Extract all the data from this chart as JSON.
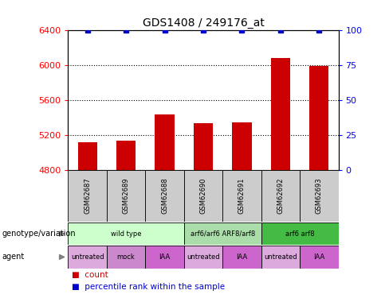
{
  "title": "GDS1408 / 249176_at",
  "samples": [
    "GSM62687",
    "GSM62689",
    "GSM62688",
    "GSM62690",
    "GSM62691",
    "GSM62692",
    "GSM62693"
  ],
  "bar_values": [
    5120,
    5130,
    5430,
    5330,
    5340,
    6080,
    5990
  ],
  "ylim_left": [
    4800,
    6400
  ],
  "ylim_right": [
    0,
    100
  ],
  "yticks_left": [
    4800,
    5200,
    5600,
    6000,
    6400
  ],
  "yticks_right": [
    0,
    25,
    50,
    75,
    100
  ],
  "bar_color": "#cc0000",
  "percentile_color": "#0000cc",
  "genotype_groups": [
    {
      "label": "wild type",
      "span": [
        0,
        3
      ],
      "color": "#ccffcc"
    },
    {
      "label": "arf6/arf6 ARF8/arf8",
      "span": [
        3,
        5
      ],
      "color": "#aaddaa"
    },
    {
      "label": "arf6 arf8",
      "span": [
        5,
        7
      ],
      "color": "#44bb44"
    }
  ],
  "agent_groups": [
    {
      "label": "untreated",
      "span": [
        0,
        1
      ],
      "color": "#ddaadd"
    },
    {
      "label": "mock",
      "span": [
        1,
        2
      ],
      "color": "#cc88cc"
    },
    {
      "label": "IAA",
      "span": [
        2,
        3
      ],
      "color": "#cc66cc"
    },
    {
      "label": "untreated",
      "span": [
        3,
        4
      ],
      "color": "#ddaadd"
    },
    {
      "label": "IAA",
      "span": [
        4,
        5
      ],
      "color": "#cc66cc"
    },
    {
      "label": "untreated",
      "span": [
        5,
        6
      ],
      "color": "#ddaadd"
    },
    {
      "label": "IAA",
      "span": [
        6,
        7
      ],
      "color": "#cc66cc"
    }
  ],
  "sample_box_color": "#cccccc",
  "grid_yticks": [
    5200,
    5600,
    6000
  ]
}
